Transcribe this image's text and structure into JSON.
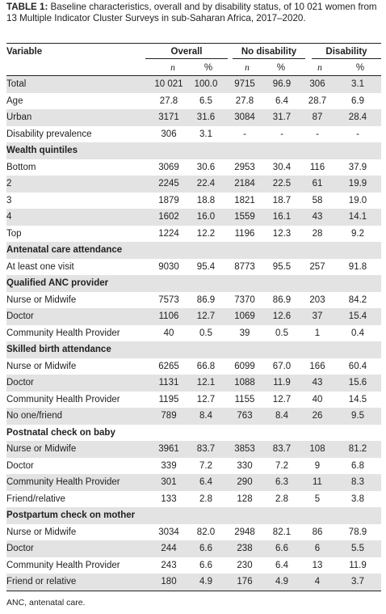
{
  "caption": {
    "label": "TABLE 1:",
    "text": " Baseline characteristics, overall and by disability status, of 10 021 women from 13 Multiple Indicator Cluster Surveys in sub-Saharan Africa, 2017–2020."
  },
  "header": {
    "variable": "Variable",
    "groups": [
      "Overall",
      "No disability",
      "Disability"
    ],
    "n": "n",
    "pct": "%"
  },
  "rows": [
    {
      "type": "data",
      "label": "Total",
      "v": [
        "10 021",
        "100.0",
        "9715",
        "96.9",
        "306",
        "3.1"
      ]
    },
    {
      "type": "data",
      "label": "Age",
      "v": [
        "27.8",
        "6.5",
        "27.8",
        "6.4",
        "28.7",
        "6.9"
      ]
    },
    {
      "type": "data",
      "label": "Urban",
      "v": [
        "3171",
        "31.6",
        "3084",
        "31.7",
        "87",
        "28.4"
      ]
    },
    {
      "type": "data",
      "label": "Disability prevalence",
      "v": [
        "306",
        "3.1",
        "-",
        "-",
        "-",
        "-"
      ]
    },
    {
      "type": "section",
      "label": "Wealth quintiles"
    },
    {
      "type": "data",
      "label": "Bottom",
      "v": [
        "3069",
        "30.6",
        "2953",
        "30.4",
        "116",
        "37.9"
      ]
    },
    {
      "type": "data",
      "label": "2",
      "v": [
        "2245",
        "22.4",
        "2184",
        "22.5",
        "61",
        "19.9"
      ]
    },
    {
      "type": "data",
      "label": "3",
      "v": [
        "1879",
        "18.8",
        "1821",
        "18.7",
        "58",
        "19.0"
      ]
    },
    {
      "type": "data",
      "label": "4",
      "v": [
        "1602",
        "16.0",
        "1559",
        "16.1",
        "43",
        "14.1"
      ]
    },
    {
      "type": "data",
      "label": "Top",
      "v": [
        "1224",
        "12.2",
        "1196",
        "12.3",
        "28",
        "9.2"
      ]
    },
    {
      "type": "section",
      "label": "Antenatal care attendance"
    },
    {
      "type": "data",
      "label": "At least one visit",
      "v": [
        "9030",
        "95.4",
        "8773",
        "95.5",
        "257",
        "91.8"
      ]
    },
    {
      "type": "section",
      "label": "Qualified ANC provider"
    },
    {
      "type": "data",
      "label": "Nurse or Midwife",
      "v": [
        "7573",
        "86.9",
        "7370",
        "86.9",
        "203",
        "84.2"
      ]
    },
    {
      "type": "data",
      "label": "Doctor",
      "v": [
        "1106",
        "12.7",
        "1069",
        "12.6",
        "37",
        "15.4"
      ]
    },
    {
      "type": "data",
      "label": "Community Health Provider",
      "v": [
        "40",
        "0.5",
        "39",
        "0.5",
        "1",
        "0.4"
      ]
    },
    {
      "type": "section",
      "label": "Skilled birth attendance"
    },
    {
      "type": "data",
      "label": "Nurse or Midwife",
      "v": [
        "6265",
        "66.8",
        "6099",
        "67.0",
        "166",
        "60.4"
      ]
    },
    {
      "type": "data",
      "label": "Doctor",
      "v": [
        "1131",
        "12.1",
        "1088",
        "11.9",
        "43",
        "15.6"
      ]
    },
    {
      "type": "data",
      "label": "Community Health Provider",
      "v": [
        "1195",
        "12.7",
        "1155",
        "12.7",
        "40",
        "14.5"
      ]
    },
    {
      "type": "data",
      "label": "No one/friend",
      "v": [
        "789",
        "8.4",
        "763",
        "8.4",
        "26",
        "9.5"
      ]
    },
    {
      "type": "section",
      "label": "Postnatal check on baby"
    },
    {
      "type": "data",
      "label": "Nurse or Midwife",
      "v": [
        "3961",
        "83.7",
        "3853",
        "83.7",
        "108",
        "81.2"
      ]
    },
    {
      "type": "data",
      "label": "Doctor",
      "v": [
        "339",
        "7.2",
        "330",
        "7.2",
        "9",
        "6.8"
      ]
    },
    {
      "type": "data",
      "label": "Community Health Provider",
      "v": [
        "301",
        "6.4",
        "290",
        "6.3",
        "11",
        "8.3"
      ]
    },
    {
      "type": "data",
      "label": "Friend/relative",
      "v": [
        "133",
        "2.8",
        "128",
        "2.8",
        "5",
        "3.8"
      ]
    },
    {
      "type": "section",
      "label": "Postpartum check on mother"
    },
    {
      "type": "data",
      "label": "Nurse or Midwife",
      "v": [
        "3034",
        "82.0",
        "2948",
        "82.1",
        "86",
        "78.9"
      ]
    },
    {
      "type": "data",
      "label": "Doctor",
      "v": [
        "244",
        "6.6",
        "238",
        "6.6",
        "6",
        "5.5"
      ]
    },
    {
      "type": "data",
      "label": "Community Health Provider",
      "v": [
        "243",
        "6.6",
        "230",
        "6.4",
        "13",
        "11.9"
      ]
    },
    {
      "type": "data",
      "label": "Friend or relative",
      "v": [
        "180",
        "4.9",
        "176",
        "4.9",
        "4",
        "3.7"
      ]
    }
  ],
  "footnote": "ANC, antenatal care."
}
